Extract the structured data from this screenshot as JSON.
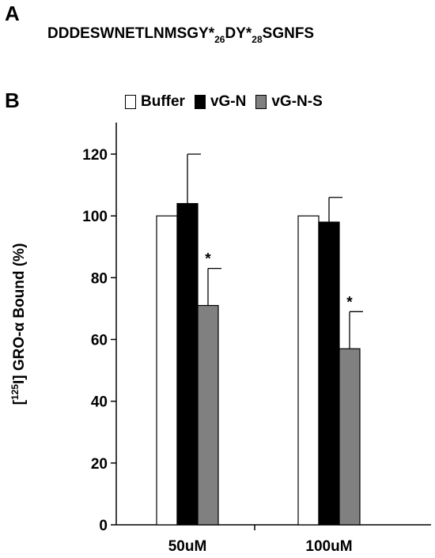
{
  "panel_a_label": "A",
  "panel_b_label": "B",
  "sequence": {
    "part1": "DDDESWNETLNMSGY*",
    "sub1": "26",
    "part2": "DY*",
    "sub2": "28",
    "part3": "SGNFS"
  },
  "chart_data": {
    "type": "bar",
    "categories": [
      "50uM",
      "100uM"
    ],
    "ylabel_pre": "[",
    "ylabel_sup": "125",
    "ylabel_post": "I] GRO-α Bound (%)",
    "ylim": [
      0,
      130
    ],
    "yticks": [
      0,
      20,
      40,
      60,
      80,
      100,
      120
    ],
    "legend_position": "top",
    "series": [
      {
        "name": "Buffer",
        "color": "#ffffff",
        "values": [
          100,
          100
        ],
        "errors": [
          null,
          null
        ],
        "significance": [
          "",
          ""
        ]
      },
      {
        "name": "vG-N",
        "color": "#000000",
        "values": [
          104,
          98
        ],
        "errors": [
          16,
          8
        ],
        "significance": [
          "",
          ""
        ]
      },
      {
        "name": "vG-N-S",
        "color": "#808080",
        "values": [
          71,
          57
        ],
        "errors": [
          12,
          12
        ],
        "significance": [
          "*",
          "*"
        ]
      }
    ]
  }
}
